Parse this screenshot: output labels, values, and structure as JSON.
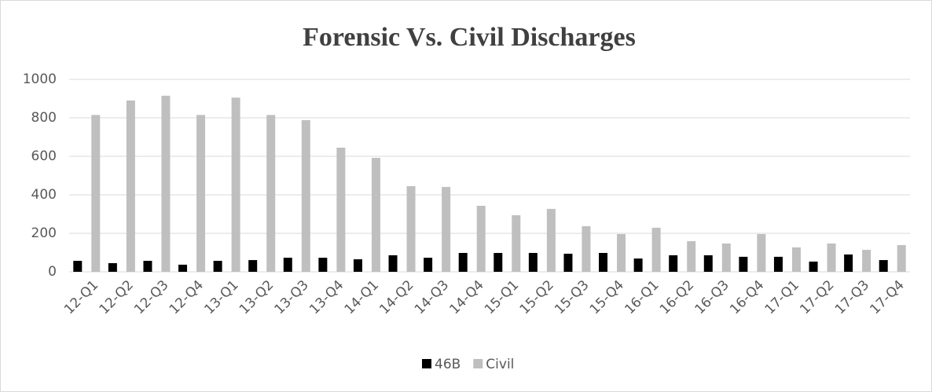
{
  "chart_data": {
    "type": "bar",
    "title": "Forensic Vs. Civil Discharges",
    "categories": [
      "12-Q1",
      "12-Q2",
      "12-Q3",
      "12-Q4",
      "13-Q1",
      "13-Q2",
      "13-Q3",
      "13-Q4",
      "14-Q1",
      "14-Q2",
      "14-Q3",
      "14-Q4",
      "15-Q1",
      "15-Q2",
      "15-Q3",
      "15-Q4",
      "16-Q1",
      "16-Q2",
      "16-Q3",
      "16-Q4",
      "17-Q1",
      "17-Q2",
      "17-Q3",
      "17-Q4"
    ],
    "series": [
      {
        "name": "46B",
        "color": "#000000",
        "values": [
          57,
          45,
          57,
          37,
          57,
          61,
          73,
          73,
          65,
          86,
          73,
          98,
          98,
          98,
          94,
          98,
          69,
          86,
          86,
          78,
          78,
          53,
          90,
          61
        ]
      },
      {
        "name": "Civil",
        "color": "#bfbfbf",
        "values": [
          815,
          890,
          915,
          815,
          905,
          815,
          788,
          645,
          592,
          445,
          441,
          343,
          294,
          327,
          237,
          196,
          229,
          159,
          147,
          196,
          127,
          147,
          114,
          139
        ]
      }
    ],
    "ylim": [
      0,
      1000
    ],
    "yticks": [
      0,
      200,
      400,
      600,
      800,
      1000
    ],
    "grid": true,
    "legend": "bottom"
  }
}
